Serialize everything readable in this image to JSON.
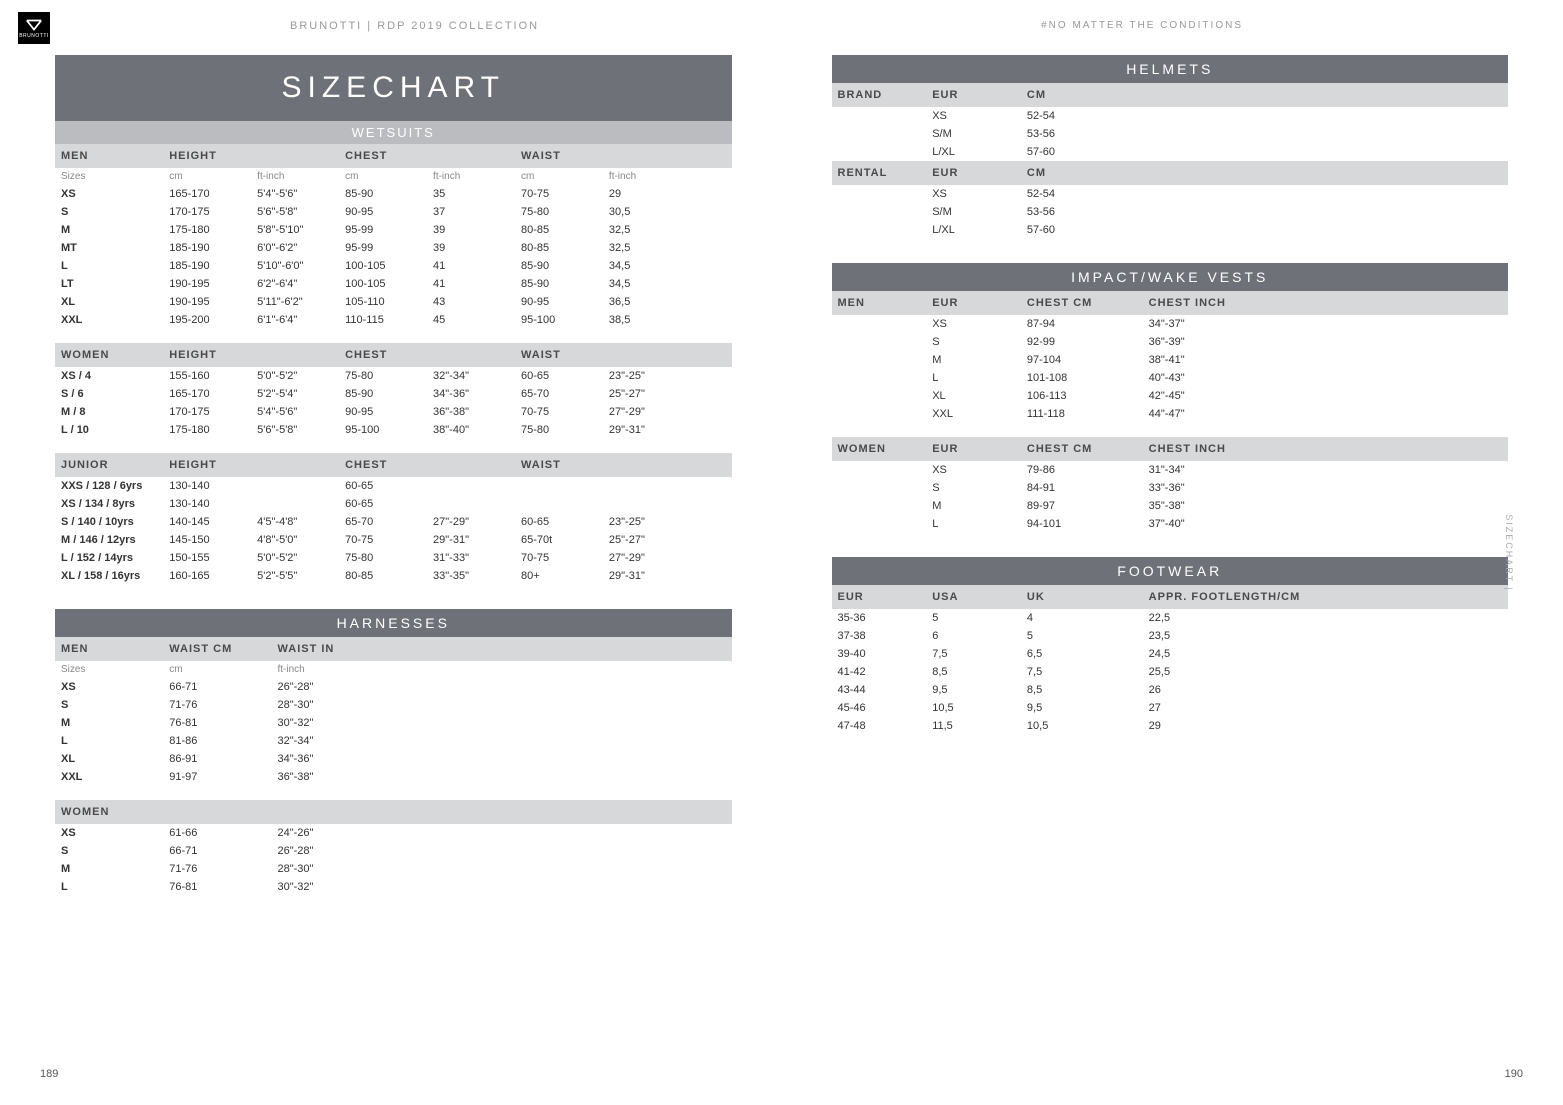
{
  "brand_logo_text": "BRUNOTTI",
  "header_left": "BRUNOTTI | RDP 2019 COLLECTION",
  "header_right": "#NO MATTER THE CONDITIONS",
  "page_left": "189",
  "page_right": "190",
  "side_text": "SIZECHART |",
  "colors": {
    "banner_dark": "#6f7179",
    "banner_light": "#babcbf",
    "group_header_bg": "#d7d8da",
    "text": "#333333",
    "muted": "#888888"
  },
  "main_title": "SIZECHART",
  "wetsuits": {
    "banner": "WETSUITS",
    "header_labels": {
      "height": "HEIGHT",
      "chest": "CHEST",
      "waist": "WAIST",
      "sizes": "Sizes",
      "cm": "cm",
      "ftinch": "ft-inch"
    },
    "men": {
      "label": "MEN",
      "rows": [
        {
          "size": "XS",
          "h_cm": "165-170",
          "h_ft": "5'4\"-5'6\"",
          "c_cm": "85-90",
          "c_ft": "35",
          "w_cm": "70-75",
          "w_ft": "29"
        },
        {
          "size": "S",
          "h_cm": "170-175",
          "h_ft": "5'6\"-5'8\"",
          "c_cm": "90-95",
          "c_ft": "37",
          "w_cm": "75-80",
          "w_ft": "30,5"
        },
        {
          "size": "M",
          "h_cm": "175-180",
          "h_ft": "5'8\"-5'10\"",
          "c_cm": "95-99",
          "c_ft": "39",
          "w_cm": "80-85",
          "w_ft": "32,5"
        },
        {
          "size": "MT",
          "h_cm": "185-190",
          "h_ft": "6'0\"-6'2\"",
          "c_cm": "95-99",
          "c_ft": "39",
          "w_cm": "80-85",
          "w_ft": "32,5"
        },
        {
          "size": "L",
          "h_cm": "185-190",
          "h_ft": "5'10\"-6'0\"",
          "c_cm": "100-105",
          "c_ft": "41",
          "w_cm": "85-90",
          "w_ft": "34,5"
        },
        {
          "size": "LT",
          "h_cm": "190-195",
          "h_ft": "6'2\"-6'4\"",
          "c_cm": "100-105",
          "c_ft": "41",
          "w_cm": "85-90",
          "w_ft": "34,5"
        },
        {
          "size": "XL",
          "h_cm": "190-195",
          "h_ft": "5'11\"-6'2\"",
          "c_cm": "105-110",
          "c_ft": "43",
          "w_cm": "90-95",
          "w_ft": "36,5"
        },
        {
          "size": "XXL",
          "h_cm": "195-200",
          "h_ft": "6'1\"-6'4\"",
          "c_cm": "110-115",
          "c_ft": "45",
          "w_cm": "95-100",
          "w_ft": "38,5"
        }
      ]
    },
    "women": {
      "label": "WOMEN",
      "rows": [
        {
          "size": "XS / 4",
          "h_cm": "155-160",
          "h_ft": "5'0\"-5'2\"",
          "c_cm": "75-80",
          "c_ft": "32\"-34\"",
          "w_cm": "60-65",
          "w_ft": "23\"-25\""
        },
        {
          "size": "S / 6",
          "h_cm": "165-170",
          "h_ft": "5'2\"-5'4\"",
          "c_cm": "85-90",
          "c_ft": "34\"-36\"",
          "w_cm": "65-70",
          "w_ft": "25\"-27\""
        },
        {
          "size": "M / 8",
          "h_cm": "170-175",
          "h_ft": "5'4\"-5'6\"",
          "c_cm": "90-95",
          "c_ft": "36\"-38\"",
          "w_cm": "70-75",
          "w_ft": "27\"-29\""
        },
        {
          "size": "L / 10",
          "h_cm": "175-180",
          "h_ft": "5'6\"-5'8\"",
          "c_cm": "95-100",
          "c_ft": "38\"-40\"",
          "w_cm": "75-80",
          "w_ft": "29\"-31\""
        }
      ]
    },
    "junior": {
      "label": "JUNIOR",
      "rows": [
        {
          "size": "XXS / 128 / 6yrs",
          "h_cm": "130-140",
          "h_ft": "",
          "c_cm": "60-65",
          "c_ft": "",
          "w_cm": "",
          "w_ft": ""
        },
        {
          "size": "XS / 134 / 8yrs",
          "h_cm": "130-140",
          "h_ft": "",
          "c_cm": "60-65",
          "c_ft": "",
          "w_cm": "",
          "w_ft": ""
        },
        {
          "size": "S / 140 / 10yrs",
          "h_cm": "140-145",
          "h_ft": "4'5\"-4'8\"",
          "c_cm": "65-70",
          "c_ft": "27\"-29\"",
          "w_cm": "60-65",
          "w_ft": "23\"-25\""
        },
        {
          "size": "M / 146 / 12yrs",
          "h_cm": "145-150",
          "h_ft": "4'8\"-5'0\"",
          "c_cm": "70-75",
          "c_ft": "29\"-31\"",
          "w_cm": "65-70t",
          "w_ft": "25\"-27\""
        },
        {
          "size": "L / 152 / 14yrs",
          "h_cm": "150-155",
          "h_ft": "5'0\"-5'2\"",
          "c_cm": "75-80",
          "c_ft": "31\"-33\"",
          "w_cm": "70-75",
          "w_ft": "27\"-29\""
        },
        {
          "size": "XL / 158 / 16yrs",
          "h_cm": "160-165",
          "h_ft": "5'2\"-5'5\"",
          "c_cm": "80-85",
          "c_ft": "33\"-35\"",
          "w_cm": "80+",
          "w_ft": "29\"-31\""
        }
      ]
    }
  },
  "harnesses": {
    "banner": "HARNESSES",
    "header_labels": {
      "waist_cm": "WAIST CM",
      "waist_in": "WAIST IN",
      "sizes": "Sizes",
      "cm": "cm",
      "ftinch": "ft-inch"
    },
    "men": {
      "label": "MEN",
      "rows": [
        {
          "size": "XS",
          "cm": "66-71",
          "in": "26\"-28\""
        },
        {
          "size": "S",
          "cm": "71-76",
          "in": "28\"-30\""
        },
        {
          "size": "M",
          "cm": "76-81",
          "in": "30\"-32\""
        },
        {
          "size": "L",
          "cm": "81-86",
          "in": "32\"-34\""
        },
        {
          "size": "XL",
          "cm": "86-91",
          "in": "34\"-36\""
        },
        {
          "size": "XXL",
          "cm": "91-97",
          "in": "36\"-38\""
        }
      ]
    },
    "women": {
      "label": "WOMEN",
      "rows": [
        {
          "size": "XS",
          "cm": "61-66",
          "in": "24\"-26\""
        },
        {
          "size": "S",
          "cm": "66-71",
          "in": "26\"-28\""
        },
        {
          "size": "M",
          "cm": "71-76",
          "in": "28\"-30\""
        },
        {
          "size": "L",
          "cm": "76-81",
          "in": "30\"-32\""
        }
      ]
    }
  },
  "helmets": {
    "banner": "HELMETS",
    "header_labels": {
      "eur": "EUR",
      "cm": "CM"
    },
    "brand": {
      "label": "BRAND",
      "rows": [
        {
          "eur": "XS",
          "cm": "52-54"
        },
        {
          "eur": "S/M",
          "cm": "53-56"
        },
        {
          "eur": "L/XL",
          "cm": "57-60"
        }
      ]
    },
    "rental": {
      "label": "RENTAL",
      "rows": [
        {
          "eur": "XS",
          "cm": "52-54"
        },
        {
          "eur": "S/M",
          "cm": "53-56"
        },
        {
          "eur": "L/XL",
          "cm": "57-60"
        }
      ]
    }
  },
  "vests": {
    "banner": "IMPACT/WAKE VESTS",
    "header_labels": {
      "eur": "EUR",
      "chest_cm": "CHEST CM",
      "chest_in": "CHEST INCH"
    },
    "men": {
      "label": "MEN",
      "rows": [
        {
          "eur": "XS",
          "cm": "87-94",
          "in": "34\"-37\""
        },
        {
          "eur": "S",
          "cm": "92-99",
          "in": "36\"-39\""
        },
        {
          "eur": "M",
          "cm": "97-104",
          "in": "38\"-41\""
        },
        {
          "eur": "L",
          "cm": "101-108",
          "in": "40\"-43\""
        },
        {
          "eur": "XL",
          "cm": "106-113",
          "in": "42\"-45\""
        },
        {
          "eur": "XXL",
          "cm": "111-118",
          "in": "44\"-47\""
        }
      ]
    },
    "women": {
      "label": "WOMEN",
      "rows": [
        {
          "eur": "XS",
          "cm": "79-86",
          "in": "31\"-34\""
        },
        {
          "eur": "S",
          "cm": "84-91",
          "in": "33\"-36\""
        },
        {
          "eur": "M",
          "cm": "89-97",
          "in": "35\"-38\""
        },
        {
          "eur": "L",
          "cm": "94-101",
          "in": "37\"-40\""
        }
      ]
    }
  },
  "footwear": {
    "banner": "FOOTWEAR",
    "header_labels": {
      "eur": "EUR",
      "usa": "USA",
      "uk": "UK",
      "len": "APPR. FOOTLENGTH/CM"
    },
    "rows": [
      {
        "eur": "35-36",
        "usa": "5",
        "uk": "4",
        "len": "22,5"
      },
      {
        "eur": "37-38",
        "usa": "6",
        "uk": "5",
        "len": "23,5"
      },
      {
        "eur": "39-40",
        "usa": "7,5",
        "uk": "6,5",
        "len": "24,5"
      },
      {
        "eur": "41-42",
        "usa": "8,5",
        "uk": "7,5",
        "len": "25,5"
      },
      {
        "eur": "43-44",
        "usa": "9,5",
        "uk": "8,5",
        "len": "26"
      },
      {
        "eur": "45-46",
        "usa": "10,5",
        "uk": "9,5",
        "len": "27"
      },
      {
        "eur": "47-48",
        "usa": "11,5",
        "uk": "10,5",
        "len": "29"
      }
    ]
  }
}
